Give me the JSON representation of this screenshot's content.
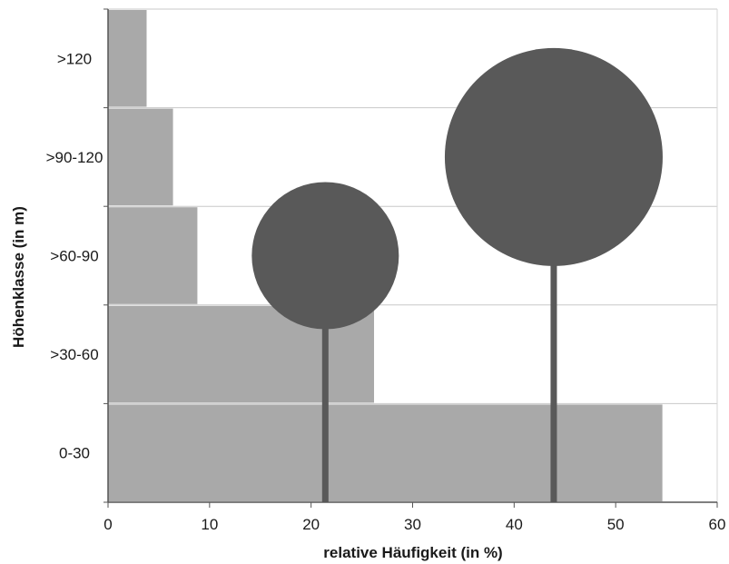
{
  "chart_data": {
    "type": "bar",
    "orientation": "horizontal",
    "categories": [
      "0-30",
      ">30-60",
      ">60-90",
      ">90-120",
      ">120"
    ],
    "values": [
      54.6,
      26.2,
      8.8,
      6.4,
      3.8
    ],
    "xlabel": "relative Häufigkeit (in %)",
    "ylabel": "Höhenklasse (in m)",
    "xlim": [
      0,
      60
    ],
    "xticks": [
      0,
      10,
      20,
      30,
      40,
      50,
      60
    ],
    "grid": "horizontal",
    "bar_color": "#a9a9a9",
    "decorations": {
      "type": "tree-silhouettes",
      "color": "#595959",
      "trees": [
        {
          "name": "small-tree",
          "x": 21.4,
          "crown_center_class": ">60-90"
        },
        {
          "name": "large-tree",
          "x": 43.9,
          "crown_center_class": ">90-120"
        }
      ]
    }
  }
}
